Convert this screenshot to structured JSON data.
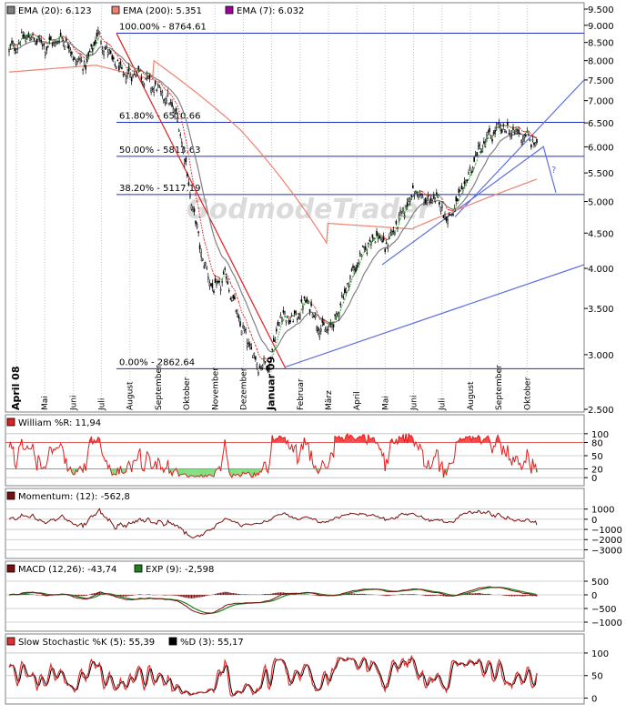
{
  "colors": {
    "ema20": "#808080",
    "ema200": "#f08070",
    "ema7": "#a000a0",
    "fib": "#2030c0",
    "trend": "#6070e0",
    "candle_up": "#ffffff",
    "candle_down": "#000000",
    "williams": "#e02020",
    "williams_fill_high": "#ff4040",
    "williams_fill_low": "#7ee07e",
    "momentum": "#7a1010",
    "macd": "#7a1010",
    "signal": "#208020",
    "stoch_k": "#e03030",
    "stoch_d": "#000000",
    "grid": "#c0c0c0"
  },
  "chart_data": [
    {
      "type": "candlestick",
      "name": "price",
      "legend": [
        {
          "label": "EMA (20): 6.123",
          "color": "#808080"
        },
        {
          "label": "EMA (200): 5.351",
          "color": "#f08070"
        },
        {
          "label": "EMA (7): 6.032",
          "color": "#a000a0"
        }
      ],
      "watermark": "GodmodeTrader",
      "y_scale": "log",
      "ylim": [
        2500,
        9500
      ],
      "y_ticks": [
        2500,
        3000,
        3500,
        4000,
        4500,
        5000,
        5500,
        6000,
        6500,
        7000,
        7500,
        8000,
        8500,
        9000,
        9500
      ],
      "y_tick_labels": [
        "2.500",
        "3.000",
        "3.500",
        "4.000",
        "4.500",
        "5.000",
        "5.500",
        "6.000",
        "6.500",
        "7.000",
        "7.500",
        "8.000",
        "8.500",
        "9.000",
        "9.500"
      ],
      "x_labels": [
        "April 08",
        "Mai",
        "Juni",
        "Juli",
        "August",
        "September",
        "Oktober",
        "November",
        "Dezember",
        "Januar 09",
        "Februar",
        "März",
        "April",
        "Mai",
        "Juni",
        "Juli",
        "August",
        "September",
        "Oktober"
      ],
      "x_label_months": [
        0,
        1,
        2,
        3,
        4,
        5,
        6,
        7,
        8,
        9,
        10,
        11,
        12,
        13,
        14,
        15,
        16,
        17,
        18
      ],
      "bold_labels": [
        "April 08",
        "Januar 09"
      ],
      "monthly_closes": [
        8300,
        8600,
        8200,
        7900,
        7800,
        7500,
        6400,
        5000,
        4200,
        3050,
        3400,
        3300,
        4300,
        4650,
        5000,
        4900,
        5700,
        6250,
        6050
      ],
      "fib_levels": [
        {
          "label": "100.00% - 8764.61",
          "value": 8764.61
        },
        {
          "label": "61.80% - 6510.66",
          "value": 6510.66
        },
        {
          "label": "50.00% - 5813.63",
          "value": 5813.63
        },
        {
          "label": "38.20% - 5117.19",
          "value": 5117.19
        },
        {
          "label": "0.00% - 2862.64",
          "value": 2862.64
        }
      ],
      "question_mark": "?"
    },
    {
      "type": "line",
      "name": "williams",
      "legend": [
        {
          "label": "William %R: 11,94",
          "color": "#e02020"
        }
      ],
      "ylim": [
        -10,
        110
      ],
      "y_ticks": [
        0,
        20,
        50,
        80,
        100
      ],
      "y_tick_labels": [
        "0",
        "20",
        "50",
        "80",
        "100"
      ],
      "levels": [
        20,
        80
      ],
      "last": 11.94
    },
    {
      "type": "line",
      "name": "momentum",
      "legend": [
        {
          "label": "Momentum: (12): -562,8",
          "color": "#7a1010"
        }
      ],
      "ylim": [
        -3500,
        1600
      ],
      "y_ticks": [
        1000,
        0,
        -1000,
        -2000,
        -3000
      ],
      "y_tick_labels": [
        "1000",
        "0",
        "−1000",
        "−2000",
        "−3000"
      ],
      "last": -562.8
    },
    {
      "type": "line",
      "name": "macd",
      "legend": [
        {
          "label": "MACD (12,26): -43,74",
          "color": "#7a1010"
        },
        {
          "label": "EXP (9): -2,598",
          "color": "#208020"
        }
      ],
      "ylim": [
        -1200,
        700
      ],
      "y_ticks": [
        500,
        0,
        -500,
        -1000
      ],
      "y_tick_labels": [
        "500",
        "0",
        "−500",
        "−1000"
      ],
      "last_macd": -43.74,
      "last_signal": -2.598
    },
    {
      "type": "line",
      "name": "stochastic",
      "legend": [
        {
          "label": "Slow Stochastic %K (5): 55,39",
          "color": "#e03030"
        },
        {
          "label": "%D (3): 55,17",
          "color": "#000000"
        }
      ],
      "ylim": [
        -5,
        110
      ],
      "y_ticks": [
        0,
        50,
        100
      ],
      "y_tick_labels": [
        "0",
        "50",
        "100"
      ],
      "last_k": 55.39,
      "last_d": 55.17
    }
  ]
}
